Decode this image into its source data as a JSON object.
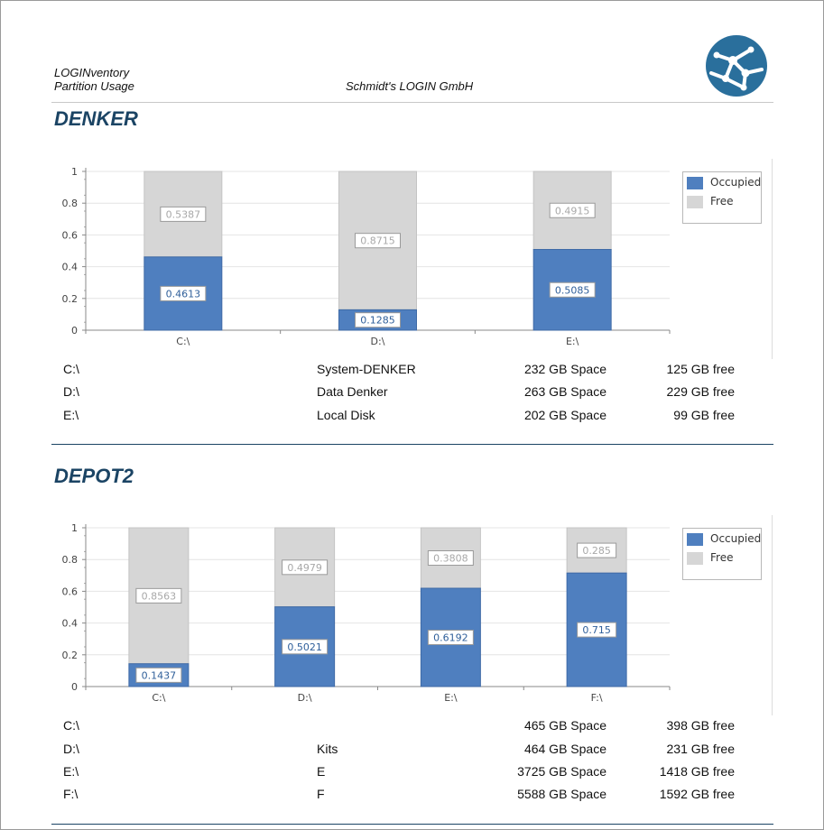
{
  "header": {
    "app_name": "LOGINventory",
    "report_name": "Partition Usage",
    "company": "Schmidt's LOGIN GmbH",
    "logo_icon": "globe-network-logo-icon"
  },
  "colors": {
    "occupied": "#4f7fbf",
    "free": "#d6d6d6",
    "title": "#1b4464"
  },
  "sections": [
    {
      "title": "DENKER",
      "chart_data": {
        "type": "bar",
        "stacked": true,
        "categories": [
          "C:\\",
          "D:\\",
          "E:\\"
        ],
        "series": [
          {
            "name": "Occupied",
            "values": [
              0.4613,
              0.1285,
              0.5085
            ]
          },
          {
            "name": "Free",
            "values": [
              0.5387,
              0.8715,
              0.4915
            ]
          }
        ],
        "yticks": [
          "0",
          "0.2",
          "0.4",
          "0.6",
          "0.8",
          "1"
        ],
        "ylim": [
          0,
          1
        ],
        "grid": true,
        "legend": "top-right"
      },
      "partitions": [
        {
          "drive": "C:\\",
          "label": "System-DENKER",
          "space": "232 GB Space",
          "free": "125 GB free"
        },
        {
          "drive": "D:\\",
          "label": "Data Denker",
          "space": "263 GB Space",
          "free": "229 GB free"
        },
        {
          "drive": "E:\\",
          "label": "Local Disk",
          "space": "202 GB Space",
          "free": "99 GB free"
        }
      ]
    },
    {
      "title": "DEPOT2",
      "chart_data": {
        "type": "bar",
        "stacked": true,
        "categories": [
          "C:\\",
          "D:\\",
          "E:\\",
          "F:\\"
        ],
        "series": [
          {
            "name": "Occupied",
            "values": [
              0.1437,
              0.5021,
              0.6192,
              0.715
            ]
          },
          {
            "name": "Free",
            "values": [
              0.8563,
              0.4979,
              0.3808,
              0.285
            ]
          }
        ],
        "yticks": [
          "0",
          "0.2",
          "0.4",
          "0.6",
          "0.8",
          "1"
        ],
        "ylim": [
          0,
          1
        ],
        "grid": true,
        "legend": "top-right"
      },
      "partitions": [
        {
          "drive": "C:\\",
          "label": "",
          "space": "465 GB Space",
          "free": "398 GB free"
        },
        {
          "drive": "D:\\",
          "label": "Kits",
          "space": "464 GB Space",
          "free": "231 GB free"
        },
        {
          "drive": "E:\\",
          "label": "E",
          "space": "3725 GB Space",
          "free": "1418 GB free"
        },
        {
          "drive": "F:\\",
          "label": "F",
          "space": "5588 GB Space",
          "free": "1592 GB free"
        }
      ]
    }
  ]
}
